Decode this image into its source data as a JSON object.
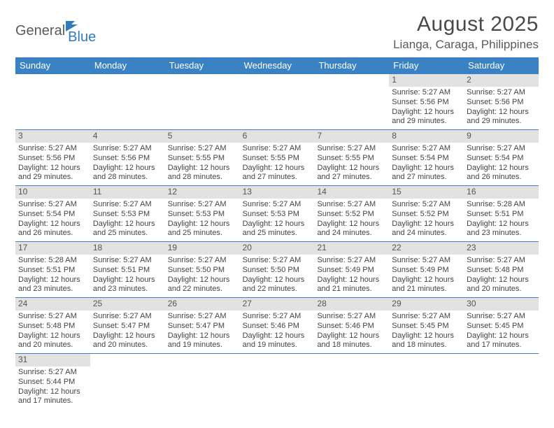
{
  "logo": {
    "part1": "General",
    "part2": "Blue"
  },
  "title": "August 2025",
  "location": "Lianga, Caraga, Philippines",
  "colors": {
    "header_bg": "#3b82c4",
    "header_text": "#ffffff",
    "daynum_bg": "#e2e2e2",
    "border": "#3b82c4",
    "text": "#444444",
    "logo_gray": "#5a5a5a",
    "logo_blue": "#2f7bbf"
  },
  "weekdays": [
    "Sunday",
    "Monday",
    "Tuesday",
    "Wednesday",
    "Thursday",
    "Friday",
    "Saturday"
  ],
  "weeks": [
    [
      {
        "empty": true
      },
      {
        "empty": true
      },
      {
        "empty": true
      },
      {
        "empty": true
      },
      {
        "empty": true
      },
      {
        "day": "1",
        "sunrise": "Sunrise: 5:27 AM",
        "sunset": "Sunset: 5:56 PM",
        "daylight1": "Daylight: 12 hours",
        "daylight2": "and 29 minutes."
      },
      {
        "day": "2",
        "sunrise": "Sunrise: 5:27 AM",
        "sunset": "Sunset: 5:56 PM",
        "daylight1": "Daylight: 12 hours",
        "daylight2": "and 29 minutes."
      }
    ],
    [
      {
        "day": "3",
        "sunrise": "Sunrise: 5:27 AM",
        "sunset": "Sunset: 5:56 PM",
        "daylight1": "Daylight: 12 hours",
        "daylight2": "and 29 minutes."
      },
      {
        "day": "4",
        "sunrise": "Sunrise: 5:27 AM",
        "sunset": "Sunset: 5:56 PM",
        "daylight1": "Daylight: 12 hours",
        "daylight2": "and 28 minutes."
      },
      {
        "day": "5",
        "sunrise": "Sunrise: 5:27 AM",
        "sunset": "Sunset: 5:55 PM",
        "daylight1": "Daylight: 12 hours",
        "daylight2": "and 28 minutes."
      },
      {
        "day": "6",
        "sunrise": "Sunrise: 5:27 AM",
        "sunset": "Sunset: 5:55 PM",
        "daylight1": "Daylight: 12 hours",
        "daylight2": "and 27 minutes."
      },
      {
        "day": "7",
        "sunrise": "Sunrise: 5:27 AM",
        "sunset": "Sunset: 5:55 PM",
        "daylight1": "Daylight: 12 hours",
        "daylight2": "and 27 minutes."
      },
      {
        "day": "8",
        "sunrise": "Sunrise: 5:27 AM",
        "sunset": "Sunset: 5:54 PM",
        "daylight1": "Daylight: 12 hours",
        "daylight2": "and 27 minutes."
      },
      {
        "day": "9",
        "sunrise": "Sunrise: 5:27 AM",
        "sunset": "Sunset: 5:54 PM",
        "daylight1": "Daylight: 12 hours",
        "daylight2": "and 26 minutes."
      }
    ],
    [
      {
        "day": "10",
        "sunrise": "Sunrise: 5:27 AM",
        "sunset": "Sunset: 5:54 PM",
        "daylight1": "Daylight: 12 hours",
        "daylight2": "and 26 minutes."
      },
      {
        "day": "11",
        "sunrise": "Sunrise: 5:27 AM",
        "sunset": "Sunset: 5:53 PM",
        "daylight1": "Daylight: 12 hours",
        "daylight2": "and 25 minutes."
      },
      {
        "day": "12",
        "sunrise": "Sunrise: 5:27 AM",
        "sunset": "Sunset: 5:53 PM",
        "daylight1": "Daylight: 12 hours",
        "daylight2": "and 25 minutes."
      },
      {
        "day": "13",
        "sunrise": "Sunrise: 5:27 AM",
        "sunset": "Sunset: 5:53 PM",
        "daylight1": "Daylight: 12 hours",
        "daylight2": "and 25 minutes."
      },
      {
        "day": "14",
        "sunrise": "Sunrise: 5:27 AM",
        "sunset": "Sunset: 5:52 PM",
        "daylight1": "Daylight: 12 hours",
        "daylight2": "and 24 minutes."
      },
      {
        "day": "15",
        "sunrise": "Sunrise: 5:27 AM",
        "sunset": "Sunset: 5:52 PM",
        "daylight1": "Daylight: 12 hours",
        "daylight2": "and 24 minutes."
      },
      {
        "day": "16",
        "sunrise": "Sunrise: 5:28 AM",
        "sunset": "Sunset: 5:51 PM",
        "daylight1": "Daylight: 12 hours",
        "daylight2": "and 23 minutes."
      }
    ],
    [
      {
        "day": "17",
        "sunrise": "Sunrise: 5:28 AM",
        "sunset": "Sunset: 5:51 PM",
        "daylight1": "Daylight: 12 hours",
        "daylight2": "and 23 minutes."
      },
      {
        "day": "18",
        "sunrise": "Sunrise: 5:27 AM",
        "sunset": "Sunset: 5:51 PM",
        "daylight1": "Daylight: 12 hours",
        "daylight2": "and 23 minutes."
      },
      {
        "day": "19",
        "sunrise": "Sunrise: 5:27 AM",
        "sunset": "Sunset: 5:50 PM",
        "daylight1": "Daylight: 12 hours",
        "daylight2": "and 22 minutes."
      },
      {
        "day": "20",
        "sunrise": "Sunrise: 5:27 AM",
        "sunset": "Sunset: 5:50 PM",
        "daylight1": "Daylight: 12 hours",
        "daylight2": "and 22 minutes."
      },
      {
        "day": "21",
        "sunrise": "Sunrise: 5:27 AM",
        "sunset": "Sunset: 5:49 PM",
        "daylight1": "Daylight: 12 hours",
        "daylight2": "and 21 minutes."
      },
      {
        "day": "22",
        "sunrise": "Sunrise: 5:27 AM",
        "sunset": "Sunset: 5:49 PM",
        "daylight1": "Daylight: 12 hours",
        "daylight2": "and 21 minutes."
      },
      {
        "day": "23",
        "sunrise": "Sunrise: 5:27 AM",
        "sunset": "Sunset: 5:48 PM",
        "daylight1": "Daylight: 12 hours",
        "daylight2": "and 20 minutes."
      }
    ],
    [
      {
        "day": "24",
        "sunrise": "Sunrise: 5:27 AM",
        "sunset": "Sunset: 5:48 PM",
        "daylight1": "Daylight: 12 hours",
        "daylight2": "and 20 minutes."
      },
      {
        "day": "25",
        "sunrise": "Sunrise: 5:27 AM",
        "sunset": "Sunset: 5:47 PM",
        "daylight1": "Daylight: 12 hours",
        "daylight2": "and 20 minutes."
      },
      {
        "day": "26",
        "sunrise": "Sunrise: 5:27 AM",
        "sunset": "Sunset: 5:47 PM",
        "daylight1": "Daylight: 12 hours",
        "daylight2": "and 19 minutes."
      },
      {
        "day": "27",
        "sunrise": "Sunrise: 5:27 AM",
        "sunset": "Sunset: 5:46 PM",
        "daylight1": "Daylight: 12 hours",
        "daylight2": "and 19 minutes."
      },
      {
        "day": "28",
        "sunrise": "Sunrise: 5:27 AM",
        "sunset": "Sunset: 5:46 PM",
        "daylight1": "Daylight: 12 hours",
        "daylight2": "and 18 minutes."
      },
      {
        "day": "29",
        "sunrise": "Sunrise: 5:27 AM",
        "sunset": "Sunset: 5:45 PM",
        "daylight1": "Daylight: 12 hours",
        "daylight2": "and 18 minutes."
      },
      {
        "day": "30",
        "sunrise": "Sunrise: 5:27 AM",
        "sunset": "Sunset: 5:45 PM",
        "daylight1": "Daylight: 12 hours",
        "daylight2": "and 17 minutes."
      }
    ],
    [
      {
        "day": "31",
        "sunrise": "Sunrise: 5:27 AM",
        "sunset": "Sunset: 5:44 PM",
        "daylight1": "Daylight: 12 hours",
        "daylight2": "and 17 minutes."
      },
      {
        "empty": true
      },
      {
        "empty": true
      },
      {
        "empty": true
      },
      {
        "empty": true
      },
      {
        "empty": true
      },
      {
        "empty": true
      }
    ]
  ]
}
